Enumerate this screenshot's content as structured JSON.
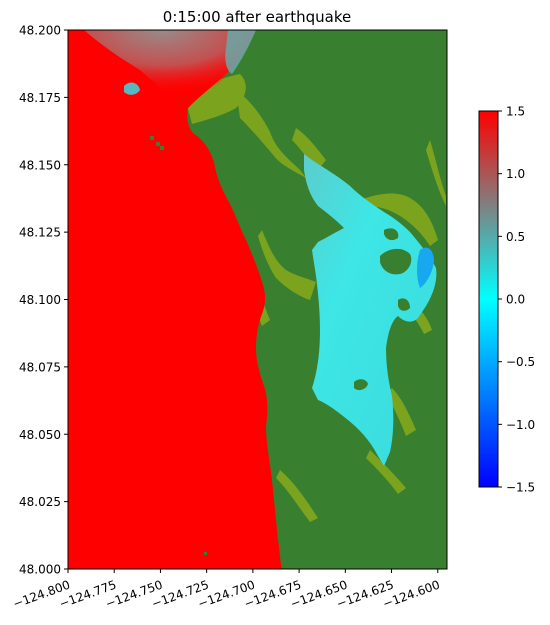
{
  "chart_data": {
    "type": "heatmap",
    "title": "0:15:00 after earthquake",
    "xlabel": "",
    "ylabel": "",
    "xlim": [
      -124.8,
      -124.595
    ],
    "ylim": [
      48.0,
      48.2
    ],
    "x_ticks": [
      -124.8,
      -124.775,
      -124.75,
      -124.725,
      -124.7,
      -124.675,
      -124.65,
      -124.625,
      -124.6
    ],
    "x_tick_labels": [
      "−124.800",
      "−124.775",
      "−124.750",
      "−124.725",
      "−124.700",
      "−124.675",
      "−124.650",
      "−124.625",
      "−124.600"
    ],
    "y_ticks": [
      48.0,
      48.025,
      48.05,
      48.075,
      48.1,
      48.125,
      48.15,
      48.175,
      48.2
    ],
    "y_tick_labels": [
      "48.000",
      "48.025",
      "48.050",
      "48.075",
      "48.100",
      "48.125",
      "48.150",
      "48.175",
      "48.200"
    ],
    "colorbar": {
      "range": [
        -1.5,
        1.5
      ],
      "ticks": [
        -1.5,
        -1.0,
        -0.5,
        0.0,
        0.5,
        1.0,
        1.5
      ],
      "tick_labels": [
        "−1.5",
        "−1.0",
        "−0.5",
        "0.0",
        "0.5",
        "1.0",
        "1.5"
      ],
      "colormap": [
        {
          "value": -1.5,
          "color": "#0000ff"
        },
        {
          "value": -0.75,
          "color": "#0080ff"
        },
        {
          "value": 0.0,
          "color": "#00ffff"
        },
        {
          "value": 0.75,
          "color": "#808080"
        },
        {
          "value": 1.5,
          "color": "#ff0000"
        }
      ]
    },
    "regions": [
      {
        "name": "land",
        "color": "#38802f"
      },
      {
        "name": "open ocean",
        "approx_value": 1.5,
        "color": "#ff0000"
      },
      {
        "name": "bay",
        "approx_value": 0.1,
        "color": "#33e8e8"
      },
      {
        "name": "shallow margins",
        "color": "#7fa51e"
      }
    ],
    "grid": false,
    "legend": "colorbar-right"
  }
}
